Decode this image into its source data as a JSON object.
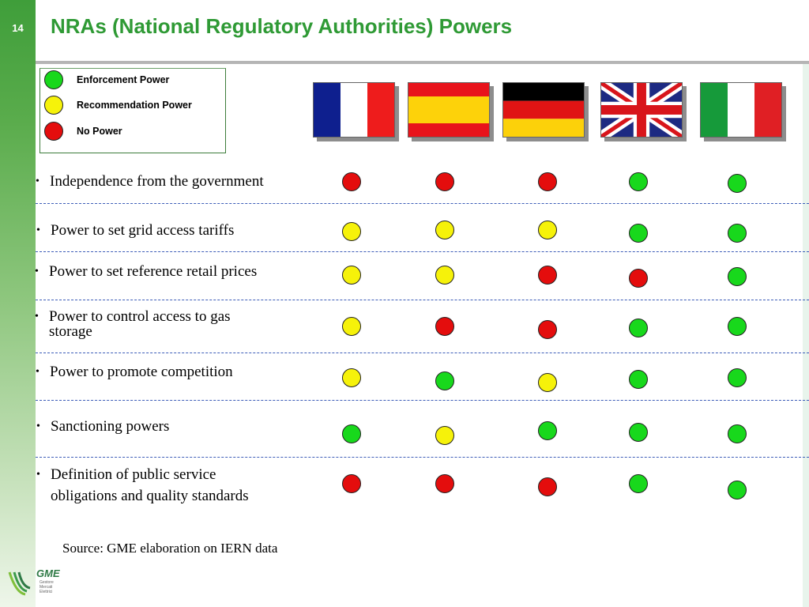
{
  "page_number": "14",
  "title": "NRAs (National Regulatory Authorities) Powers",
  "legend": [
    {
      "label": "Enforcement Power",
      "color": "green"
    },
    {
      "label": "Recommendation Power",
      "color": "yellow"
    },
    {
      "label": "No Power",
      "color": "red"
    }
  ],
  "colors": {
    "green": "#18d81c",
    "yellow": "#f6f20a",
    "red": "#e40d0d",
    "title": "#2f9a35"
  },
  "flags": [
    "france-flag",
    "spain-flag",
    "germany-flag",
    "uk-flag",
    "italy-flag"
  ],
  "rows": [
    {
      "line1": "Independence from the government",
      "line2": "",
      "values": [
        "red",
        "red",
        "red",
        "green",
        "green"
      ]
    },
    {
      "line1": "Power to set grid access tariffs",
      "line2": "",
      "values": [
        "yellow",
        "yellow",
        "yellow",
        "green",
        "green"
      ]
    },
    {
      "line1": "Power to set reference retail prices",
      "line2": "",
      "values": [
        "yellow",
        "yellow",
        "red",
        "red",
        "green"
      ]
    },
    {
      "line1": "Power to control access to gas",
      "line2": "storage",
      "values": [
        "yellow",
        "red",
        "red",
        "green",
        "green"
      ]
    },
    {
      "line1": "Power to promote competition",
      "line2": "",
      "values": [
        "yellow",
        "green",
        "yellow",
        "green",
        "green"
      ]
    },
    {
      "line1": "Sanctioning powers",
      "line2": "",
      "values": [
        "green",
        "yellow",
        "green",
        "green",
        "green"
      ]
    },
    {
      "line1": "Definition of public service",
      "line2": "obligations and quality standards",
      "values": [
        "red",
        "red",
        "red",
        "green",
        "green"
      ]
    }
  ],
  "source": "Source: GME elaboration on IERN data",
  "logo": {
    "text": "GME",
    "subtitle": "Gestore Mercati Elettrici"
  }
}
